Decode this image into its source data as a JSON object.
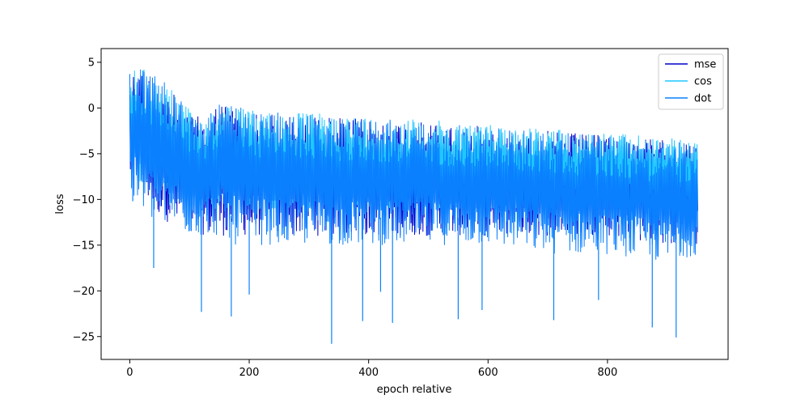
{
  "chart_data": {
    "type": "line",
    "title": "",
    "xlabel": "epoch relative",
    "ylabel": "loss",
    "xlim": [
      -48,
      1002
    ],
    "ylim": [
      -27.5,
      6.5
    ],
    "x_ticks": [
      0,
      200,
      400,
      600,
      800
    ],
    "x_tick_labels": [
      "0",
      "200",
      "400",
      "600",
      "800"
    ],
    "y_ticks": [
      5,
      0,
      -5,
      -10,
      -15,
      -20,
      -25
    ],
    "y_tick_labels": [
      "5",
      "0",
      "−5",
      "−10",
      "−15",
      "−20",
      "−25"
    ],
    "grid": false,
    "legend_position": "top-right",
    "x_range": [
      0,
      950
    ],
    "sample_step": 2,
    "series": [
      {
        "name": "mse",
        "color": "#0000cc",
        "x": [
          0,
          25,
          50,
          75,
          100,
          125,
          150,
          175,
          200,
          300,
          400,
          500,
          600,
          700,
          800,
          900,
          950
        ],
        "upper": [
          4.2,
          4.0,
          3.0,
          1.5,
          -0.5,
          -1.2,
          1.0,
          0.0,
          -0.5,
          -0.8,
          -1.2,
          -1.6,
          -2.0,
          -2.5,
          -3.0,
          -3.5,
          -4.0
        ],
        "lower": [
          -8,
          -10,
          -12,
          -13,
          -13,
          -14,
          -14,
          -14,
          -14,
          -14,
          -14,
          -14,
          -14,
          -14,
          -14,
          -15,
          -15
        ]
      },
      {
        "name": "cos",
        "color": "#1ec8ff",
        "x": [
          0,
          25,
          50,
          75,
          100,
          125,
          150,
          175,
          200,
          300,
          400,
          500,
          600,
          700,
          800,
          900,
          950
        ],
        "upper": [
          4.4,
          4.2,
          3.2,
          1.8,
          -0.2,
          -1.0,
          1.3,
          0.3,
          -0.2,
          -0.5,
          -0.9,
          -1.3,
          -1.7,
          -2.2,
          -2.7,
          -3.2,
          -3.7
        ],
        "lower": [
          -7,
          -9,
          -10,
          -11,
          -11,
          -11,
          -11,
          -11,
          -11,
          -11,
          -11,
          -11,
          -11,
          -11,
          -11,
          -11,
          -11
        ]
      },
      {
        "name": "dot",
        "color": "#0a80ff",
        "x": [
          0,
          25,
          50,
          75,
          100,
          125,
          150,
          175,
          200,
          300,
          400,
          500,
          600,
          700,
          800,
          900,
          950
        ],
        "upper": [
          4.5,
          4.3,
          3.3,
          1.8,
          -0.5,
          -1.2,
          1.2,
          0.3,
          -0.3,
          -0.7,
          -1.1,
          -1.5,
          -2.0,
          -2.5,
          -3.0,
          -3.5,
          -4.0
        ],
        "lower": [
          -10,
          -12,
          -13,
          -13,
          -14,
          -14,
          -14,
          -15,
          -15,
          -15,
          -15,
          -15,
          -15,
          -16,
          -16,
          -17,
          -16
        ]
      }
    ],
    "spikes": {
      "series": "dot",
      "x": [
        5,
        40,
        120,
        170,
        200,
        338,
        390,
        420,
        440,
        550,
        590,
        710,
        785,
        875,
        915
      ],
      "y": [
        -10.2,
        -17.5,
        -22.3,
        -22.8,
        -20.4,
        -25.8,
        -23.3,
        -20.1,
        -23.5,
        -23.1,
        -22.1,
        -23.2,
        -21,
        -24,
        -25.1
      ]
    }
  }
}
